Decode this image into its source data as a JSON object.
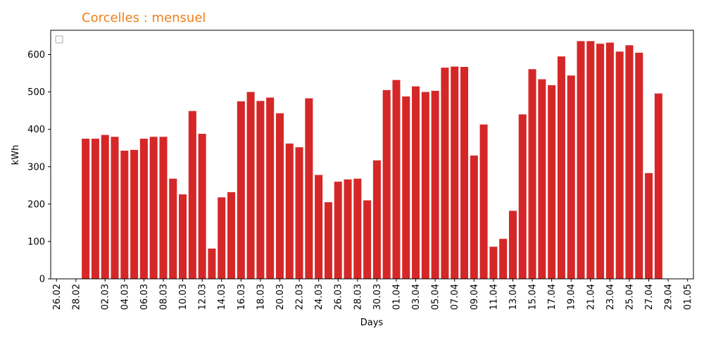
{
  "colors": {
    "title": "#f07f1a",
    "bar": "#d62728",
    "axis": "#000000",
    "background": "#ffffff"
  },
  "chart_data": {
    "type": "bar",
    "title": "Corcelles : mensuel",
    "xlabel": "Days",
    "ylabel": "kWh",
    "ylim": [
      0,
      665
    ],
    "yticks": [
      0,
      100,
      200,
      300,
      400,
      500,
      600
    ],
    "grid": false,
    "legend": "top-left (empty)",
    "xtick_labels": [
      "26.02",
      "28.02",
      "02.03",
      "04.03",
      "06.03",
      "08.03",
      "10.03",
      "12.03",
      "14.03",
      "16.03",
      "18.03",
      "20.03",
      "22.03",
      "24.03",
      "26.03",
      "28.03",
      "30.03",
      "01.04",
      "03.04",
      "05.04",
      "07.04",
      "09.04",
      "11.04",
      "13.04",
      "15.04",
      "17.04",
      "19.04",
      "21.04",
      "23.04",
      "25.04",
      "27.04",
      "29.04",
      "01.05"
    ],
    "categories": [
      "26.02",
      "27.02",
      "28.02",
      "29.02",
      "01.03",
      "02.03",
      "03.03",
      "04.03",
      "05.03",
      "06.03",
      "07.03",
      "08.03",
      "09.03",
      "10.03",
      "11.03",
      "12.03",
      "13.03",
      "14.03",
      "15.03",
      "16.03",
      "17.03",
      "18.03",
      "19.03",
      "20.03",
      "21.03",
      "22.03",
      "23.03",
      "24.03",
      "25.03",
      "26.03",
      "27.03",
      "28.03",
      "29.03",
      "30.03",
      "31.03",
      "01.04",
      "02.04",
      "03.04",
      "04.04",
      "05.04",
      "06.04",
      "07.04",
      "08.04",
      "09.04",
      "10.04",
      "11.04",
      "12.04",
      "13.04",
      "14.04",
      "15.04",
      "16.04",
      "17.04",
      "18.04",
      "19.04",
      "20.04",
      "21.04",
      "22.04",
      "23.04",
      "24.04",
      "25.04",
      "26.04",
      "27.04",
      "28.04",
      "29.04",
      "30.04",
      "01.05"
    ],
    "values": [
      0,
      0,
      0,
      375,
      375,
      385,
      380,
      343,
      345,
      375,
      380,
      380,
      268,
      226,
      449,
      388,
      81,
      218,
      232,
      475,
      500,
      476,
      485,
      443,
      362,
      352,
      483,
      278,
      205,
      260,
      266,
      268,
      210,
      317,
      505,
      532,
      488,
      515,
      500,
      503,
      565,
      568,
      567,
      330,
      413,
      86,
      107,
      182,
      440,
      561,
      534,
      518,
      595,
      544,
      636,
      636,
      629,
      632,
      608,
      625,
      605,
      283,
      496,
      0,
      0,
      0
    ]
  }
}
